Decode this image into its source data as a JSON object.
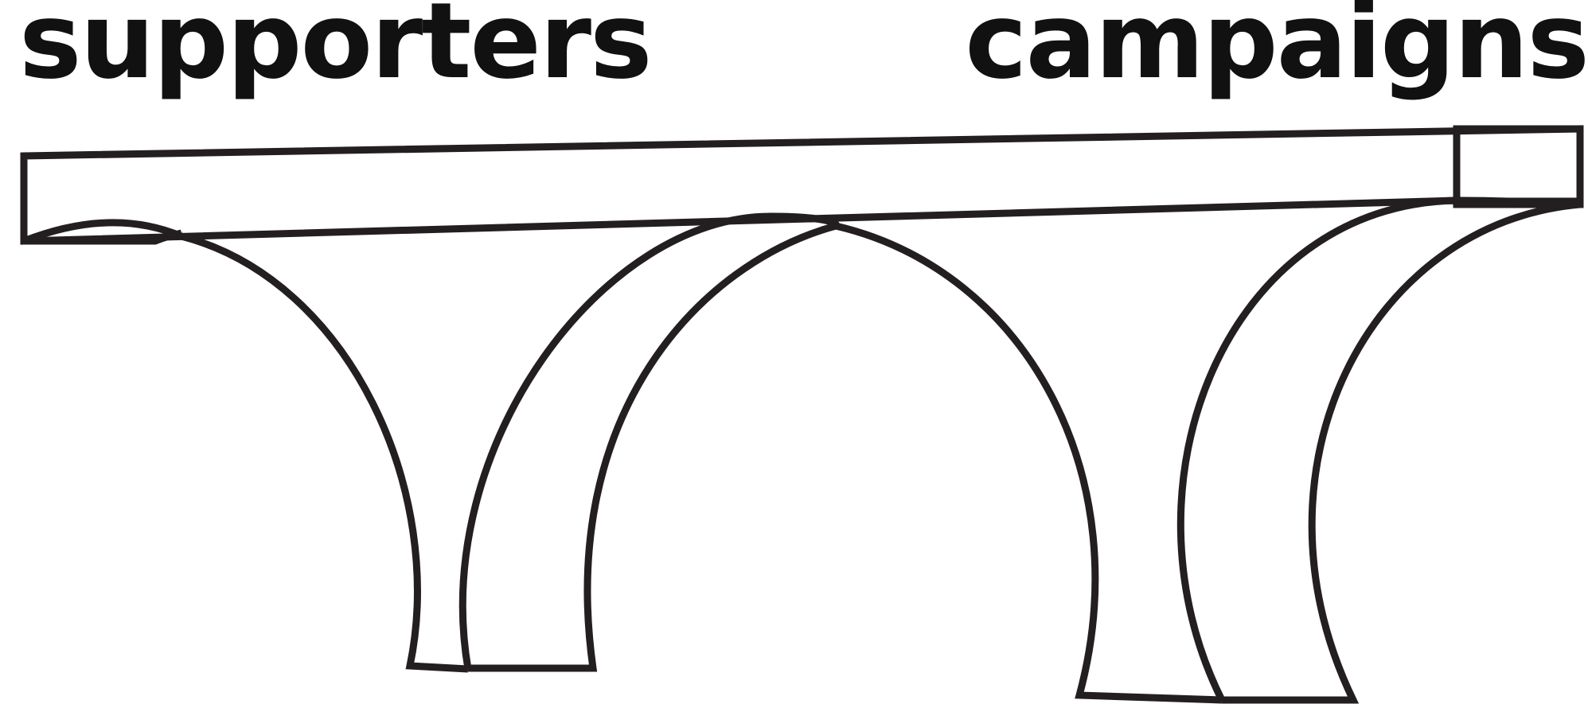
{
  "labels": {
    "left": "supporters",
    "right": "campaigns"
  },
  "colors": {
    "stroke": "#231f20",
    "text": "#111111",
    "background": "#ffffff"
  }
}
